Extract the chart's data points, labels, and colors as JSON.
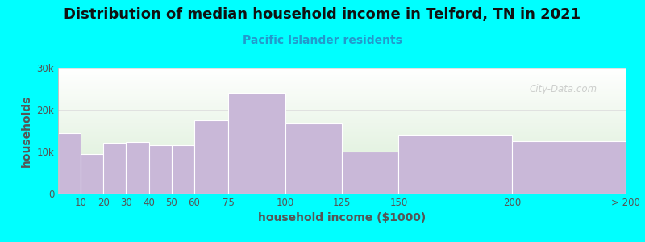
{
  "title": "Distribution of median household income in Telford, TN in 2021",
  "subtitle": "Pacific Islander residents",
  "xlabel": "household income ($1000)",
  "ylabel": "households",
  "background_color": "#00FFFF",
  "plot_bg_gradient_top": "#d8edd4",
  "plot_bg_gradient_bottom": "#ffffff",
  "bar_color": "#c9b8d8",
  "bar_edge_color": "#ffffff",
  "bin_edges": [
    0,
    10,
    20,
    30,
    40,
    50,
    60,
    75,
    100,
    125,
    150,
    200,
    250
  ],
  "values": [
    14500,
    9500,
    12200,
    12300,
    11500,
    11500,
    17500,
    24000,
    16800,
    10000,
    14000,
    12500
  ],
  "xtick_positions": [
    10,
    20,
    30,
    40,
    50,
    60,
    75,
    100,
    125,
    150,
    200
  ],
  "xtick_labels": [
    "10",
    "20",
    "30",
    "40",
    "50",
    "60",
    "75",
    "100",
    "125",
    "150",
    "200"
  ],
  "xlast_label": "> 200",
  "ylim": [
    0,
    30000
  ],
  "yticks": [
    0,
    10000,
    20000,
    30000
  ],
  "ytick_labels": [
    "0",
    "10k",
    "20k",
    "30k"
  ],
  "title_fontsize": 13,
  "subtitle_fontsize": 10,
  "axis_label_fontsize": 10,
  "tick_fontsize": 8.5,
  "watermark_text": "City-Data.com",
  "title_color": "#111111",
  "subtitle_color": "#2299cc",
  "axis_label_color": "#555555",
  "tick_color": "#555555"
}
